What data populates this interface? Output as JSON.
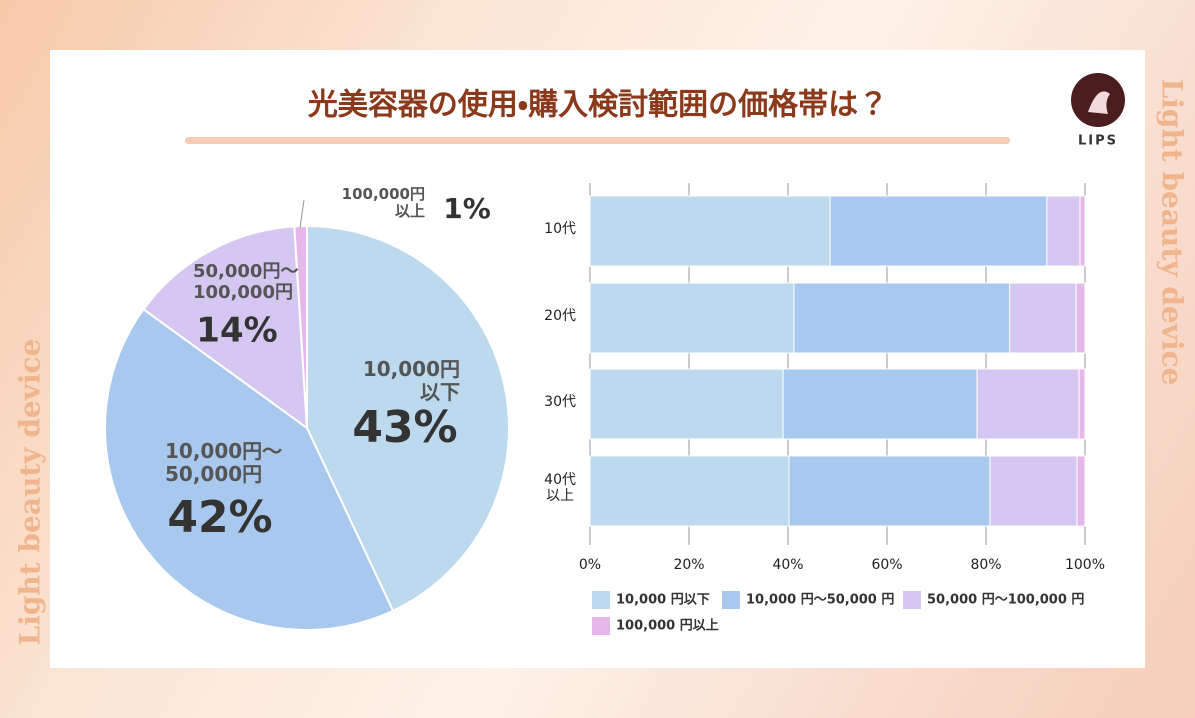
{
  "header": {
    "title": "光美容器の使用・購入検討範囲の価格帯は？",
    "logo": "LIPS"
  },
  "side_text": [
    "Light beauty device",
    "Light beauty device"
  ],
  "chart_data": [
    {
      "type": "pie",
      "categories": [
        "10,000円\n以下",
        "10,000円〜\n50,000円",
        "50,000円〜\n100,000円",
        "100,000円\n以上"
      ],
      "values": [
        43,
        42,
        14,
        1
      ],
      "value_labels": [
        "43%",
        "42%",
        "14%",
        "1%"
      ],
      "colors": [
        "#bcd9ee",
        "#a9c8ee",
        "#d4c8f2",
        "#e6b8ea"
      ]
    },
    {
      "type": "bar",
      "orientation": "horizontal",
      "stacked": true,
      "categories": [
        "10代",
        "20代",
        "30代",
        "40代\n以上"
      ],
      "series": [
        {
          "name": "10,000 円以下",
          "color": "#bcd9ee",
          "values": [
            48.5,
            41.2,
            39.0,
            40.2
          ]
        },
        {
          "name": "10,000 円〜50,000 円",
          "color": "#a9c8ee",
          "values": [
            43.8,
            43.6,
            39.2,
            40.6
          ]
        },
        {
          "name": "50,000 円〜100,000 円",
          "color": "#d4c8f2",
          "values": [
            6.7,
            13.4,
            20.6,
            17.6
          ]
        },
        {
          "name": "100,000 円以上",
          "color": "#e6b8ea",
          "values": [
            1.0,
            1.8,
            1.2,
            1.6
          ]
        }
      ],
      "xlim": [
        0,
        100
      ],
      "xticks": [
        {
          "value": 0,
          "label": "0%"
        },
        {
          "value": 20,
          "label": "20%"
        },
        {
          "value": 40,
          "label": "40%"
        },
        {
          "value": 60,
          "label": "60%"
        },
        {
          "value": 80,
          "label": "80%"
        },
        {
          "value": 100,
          "label": "100%"
        }
      ],
      "grid": true
    }
  ]
}
